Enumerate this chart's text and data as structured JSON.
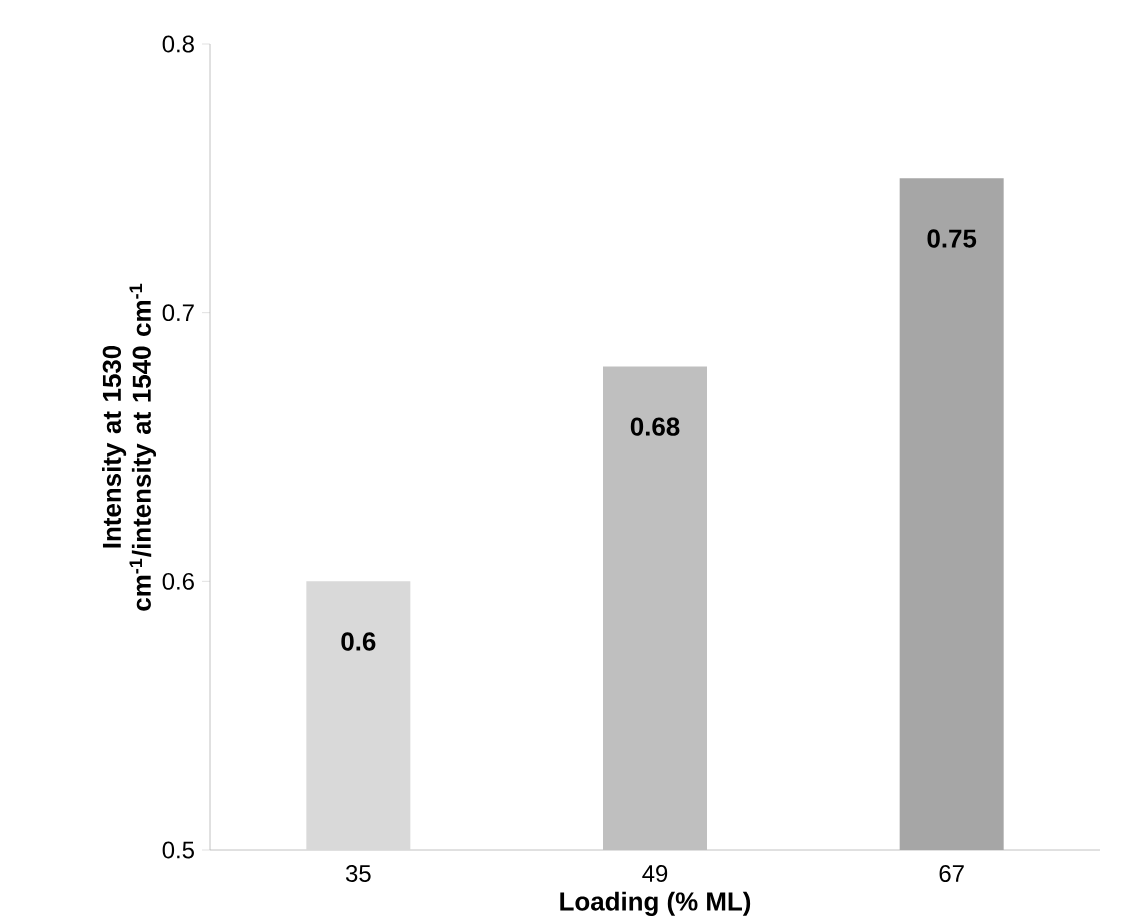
{
  "chart_data": {
    "type": "bar",
    "xlabel": "Loading (% ML)",
    "ylabel": "Intensity at 1530 cm$^{-1}$/intensity at 1540 cm$^{-1}$",
    "categories": [
      "35",
      "49",
      "67"
    ],
    "values": [
      0.6,
      0.68,
      0.75
    ],
    "colors": [
      "#d9d9d9",
      "#bfbfbf",
      "#a6a6a6"
    ],
    "ylim": [
      0.5,
      0.8
    ],
    "yticks": [
      0.5,
      0.6,
      0.7,
      0.8
    ],
    "data_labels": true
  }
}
